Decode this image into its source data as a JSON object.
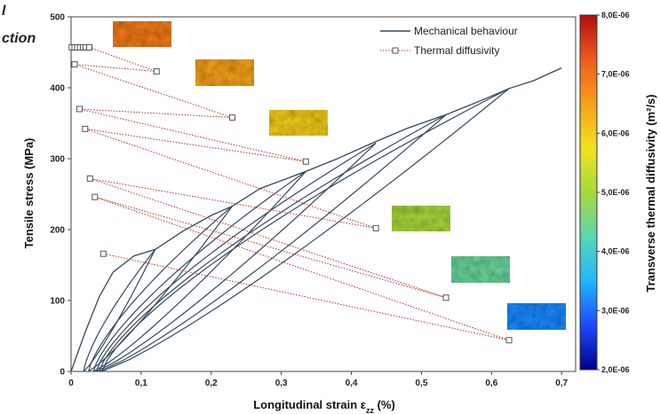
{
  "fragments": {
    "line1": "l",
    "line2": "ction"
  },
  "chart_data": {
    "type": "line",
    "xlabel": "Longitudinal strain ε",
    "xlabel_sub": "zz",
    "xlabel_unit": " (%)",
    "ylabel": "Tensile stress (MPa)",
    "xlim": [
      0,
      0.72
    ],
    "ylim": [
      0,
      500
    ],
    "xticks": [
      "0",
      "0,1",
      "0,2",
      "0,3",
      "0,4",
      "0,5",
      "0,6",
      "0,7"
    ],
    "yticks": [
      "0",
      "100",
      "200",
      "300",
      "400",
      "500"
    ],
    "legend": {
      "position": "top-right",
      "mechanical": "Mechanical behaviour",
      "thermal": "Thermal diffusivity"
    },
    "colors": {
      "mechanical": "#34495e",
      "thermal": "#c0392b",
      "marker_edge": "#555555"
    },
    "mechanical": {
      "loading_envelope": [
        [
          0,
          0
        ],
        [
          0.02,
          55
        ],
        [
          0.04,
          105
        ],
        [
          0.06,
          140
        ],
        [
          0.09,
          163
        ],
        [
          0.12,
          172
        ],
        [
          0.16,
          198
        ],
        [
          0.2,
          220
        ],
        [
          0.23,
          233
        ],
        [
          0.27,
          258
        ],
        [
          0.335,
          282
        ],
        [
          0.38,
          300
        ],
        [
          0.43,
          322
        ],
        [
          0.48,
          343
        ],
        [
          0.535,
          362
        ],
        [
          0.59,
          384
        ],
        [
          0.625,
          399
        ],
        [
          0.66,
          410
        ],
        [
          0.7,
          428
        ]
      ],
      "cycles": [
        {
          "peak": [
            0.12,
            172
          ],
          "residual": 0.018
        },
        {
          "peak": [
            0.23,
            233
          ],
          "residual": 0.025
        },
        {
          "peak": [
            0.335,
            282
          ],
          "residual": 0.032
        },
        {
          "peak": [
            0.435,
            322
          ],
          "residual": 0.036
        },
        {
          "peak": [
            0.535,
            362
          ],
          "residual": 0.04
        },
        {
          "peak": [
            0.625,
            399
          ],
          "residual": 0.044
        }
      ]
    },
    "thermal_diffusivity": {
      "zigzag_y": [
        457,
        423,
        433,
        358,
        370,
        296,
        342,
        202,
        272,
        104,
        246,
        44,
        166
      ],
      "zigzag_x": [
        0.026,
        0.122,
        0.005,
        0.23,
        0.012,
        0.335,
        0.02,
        0.435,
        0.027,
        0.535,
        0.034,
        0.625,
        0.046
      ],
      "stack_x": [
        0.001,
        0.005,
        0.009,
        0.013,
        0.017,
        0.021,
        0.026
      ],
      "stack_y": 457
    },
    "thermal_maps": [
      {
        "value_m2s": 6.9e-06,
        "near_point": [
          0.122,
          423
        ]
      },
      {
        "value_m2s": 6.5e-06,
        "near_point": [
          0.23,
          358
        ]
      },
      {
        "value_m2s": 6e-06,
        "near_point": [
          0.335,
          296
        ]
      },
      {
        "value_m2s": 5e-06,
        "near_point": [
          0.435,
          202
        ]
      },
      {
        "value_m2s": 4.4e-06,
        "near_point": [
          0.535,
          104
        ]
      },
      {
        "value_m2s": 3.2e-06,
        "near_point": [
          0.625,
          44
        ]
      }
    ],
    "colorbar": {
      "label": "Transverse thermal diffusivity (m²/s)",
      "min": 2e-06,
      "max": 8e-06,
      "ticks": [
        "2,0E-06",
        "3,0E-06",
        "4,0E-06",
        "5,0E-06",
        "6,0E-06",
        "7,0E-06",
        "8,0E-06"
      ],
      "stops": [
        "#00008b",
        "#1f48ff",
        "#1fb7ff",
        "#5cd6b4",
        "#a7d83d",
        "#f1e21f",
        "#f6a11c",
        "#f05a1c",
        "#b10d0d"
      ]
    }
  }
}
